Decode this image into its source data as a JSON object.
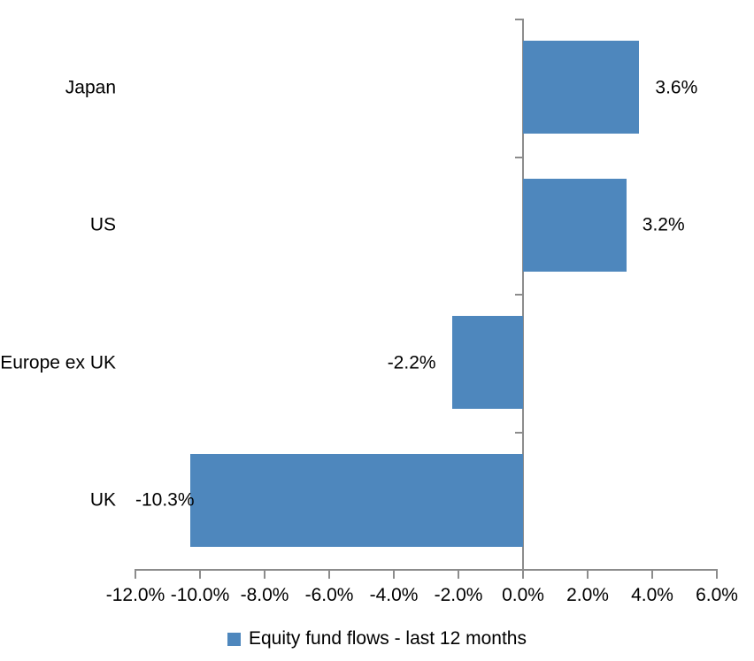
{
  "chart_data": {
    "type": "bar",
    "orientation": "horizontal",
    "title": "",
    "categories": [
      "Japan",
      "US",
      "Europe ex UK",
      "UK"
    ],
    "values": [
      3.6,
      3.2,
      -2.2,
      -10.3
    ],
    "data_labels": [
      "3.6%",
      "3.2%",
      "-2.2%",
      "-10.3%"
    ],
    "series_name": "Equity fund flows - last 12 months",
    "xlim": [
      -12,
      6
    ],
    "x_tick_step": 2,
    "x_tick_labels": [
      "-12.0%",
      "-10.0%",
      "-8.0%",
      "-6.0%",
      "-4.0%",
      "-2.0%",
      "0.0%",
      "2.0%",
      "4.0%",
      "6.0%"
    ],
    "grid": false,
    "legend_position": "bottom",
    "colors": {
      "bar": "#4E87BD",
      "axis": "#8C8C8C",
      "text": "#000000",
      "background": "#FFFFFF"
    }
  },
  "legend": {
    "items": [
      {
        "label": "Equity fund flows - last 12 months",
        "swatch_color": "#4E87BD"
      }
    ]
  }
}
